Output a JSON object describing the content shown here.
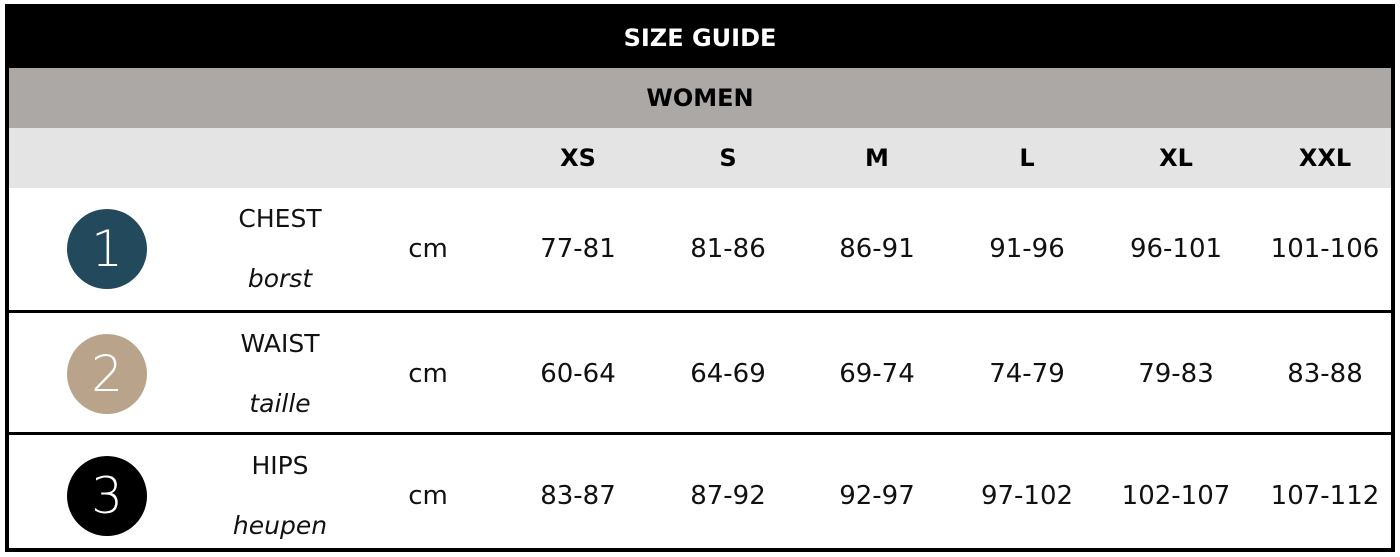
{
  "title": "SIZE GUIDE",
  "category": "WOMEN",
  "sizes": [
    "XS",
    "S",
    "M",
    "L",
    "XL",
    "XXL"
  ],
  "rows": [
    {
      "number": "1",
      "color": "#22495c",
      "label": "CHEST",
      "translation": "borst",
      "unit": "cm",
      "values": [
        "77-81",
        "81-86",
        "86-91",
        "91-96",
        "96-101",
        "101-106"
      ]
    },
    {
      "number": "2",
      "color": "#b9a48b",
      "label": "WAIST",
      "translation": "taille",
      "unit": "cm",
      "values": [
        "60-64",
        "64-69",
        "69-74",
        "74-79",
        "79-83",
        "83-88"
      ]
    },
    {
      "number": "3",
      "color": "#000000",
      "label": "HIPS",
      "translation": "heupen",
      "unit": "cm",
      "values": [
        "83-87",
        "87-92",
        "92-97",
        "97-102",
        "102-107",
        "107-112"
      ]
    }
  ]
}
